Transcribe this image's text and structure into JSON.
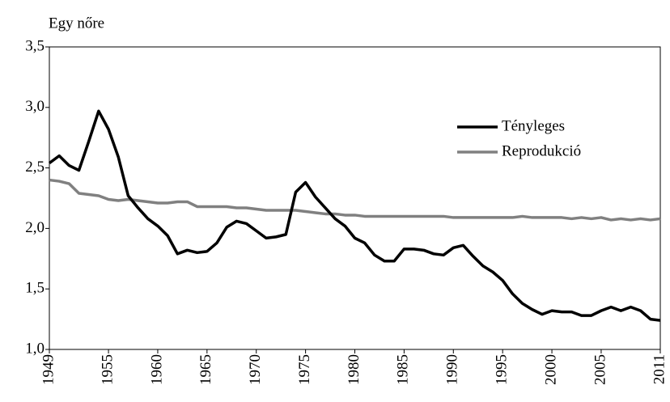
{
  "chart_data": {
    "type": "line",
    "y_label": "Egy nőre",
    "x": [
      1949,
      1950,
      1951,
      1952,
      1953,
      1954,
      1955,
      1956,
      1957,
      1958,
      1959,
      1960,
      1961,
      1962,
      1963,
      1964,
      1965,
      1966,
      1967,
      1968,
      1969,
      1970,
      1971,
      1972,
      1973,
      1974,
      1975,
      1976,
      1977,
      1978,
      1979,
      1980,
      1981,
      1982,
      1983,
      1984,
      1985,
      1986,
      1987,
      1988,
      1989,
      1990,
      1991,
      1992,
      1993,
      1994,
      1995,
      1996,
      1997,
      1998,
      1999,
      2000,
      2001,
      2002,
      2003,
      2004,
      2005,
      2006,
      2007,
      2008,
      2009,
      2010,
      2011
    ],
    "series": [
      {
        "name": "Tényleges",
        "color": "#000000",
        "values": [
          2.54,
          2.6,
          2.52,
          2.48,
          2.72,
          2.97,
          2.82,
          2.59,
          2.27,
          2.17,
          2.08,
          2.02,
          1.94,
          1.79,
          1.82,
          1.8,
          1.81,
          1.88,
          2.01,
          2.06,
          2.04,
          1.98,
          1.92,
          1.93,
          1.95,
          2.3,
          2.38,
          2.26,
          2.17,
          2.08,
          2.02,
          1.92,
          1.88,
          1.78,
          1.73,
          1.73,
          1.83,
          1.83,
          1.82,
          1.79,
          1.78,
          1.84,
          1.86,
          1.77,
          1.69,
          1.64,
          1.57,
          1.46,
          1.38,
          1.33,
          1.29,
          1.32,
          1.31,
          1.31,
          1.28,
          1.28,
          1.32,
          1.35,
          1.32,
          1.35,
          1.32,
          1.25,
          1.24
        ]
      },
      {
        "name": "Reprodukció",
        "color": "#808080",
        "values": [
          2.4,
          2.39,
          2.37,
          2.29,
          2.28,
          2.27,
          2.24,
          2.23,
          2.24,
          2.23,
          2.22,
          2.21,
          2.21,
          2.22,
          2.22,
          2.18,
          2.18,
          2.18,
          2.18,
          2.17,
          2.17,
          2.16,
          2.15,
          2.15,
          2.15,
          2.15,
          2.14,
          2.13,
          2.12,
          2.12,
          2.11,
          2.11,
          2.1,
          2.1,
          2.1,
          2.1,
          2.1,
          2.1,
          2.1,
          2.1,
          2.1,
          2.09,
          2.09,
          2.09,
          2.09,
          2.09,
          2.09,
          2.09,
          2.1,
          2.09,
          2.09,
          2.09,
          2.09,
          2.08,
          2.09,
          2.08,
          2.09,
          2.07,
          2.08,
          2.07,
          2.08,
          2.07,
          2.08
        ]
      }
    ],
    "xlim": [
      1949,
      2011
    ],
    "xticks": [
      1949,
      1955,
      1960,
      1965,
      1970,
      1975,
      1980,
      1985,
      1990,
      1995,
      2000,
      2005,
      2011
    ],
    "ylim": [
      1,
      3.5
    ],
    "yticks": [
      {
        "value": 1,
        "label": "1,0"
      },
      {
        "value": 1.5,
        "label": "1,5"
      },
      {
        "value": 2,
        "label": "2,0"
      },
      {
        "value": 2.5,
        "label": "2,5"
      },
      {
        "value": 3,
        "label": "3,0"
      },
      {
        "value": 3.5,
        "label": "3,5"
      }
    ]
  }
}
